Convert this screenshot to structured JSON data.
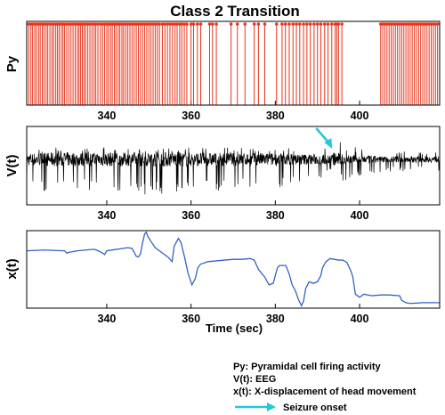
{
  "chart_data": [
    {
      "type": "raster",
      "title": "Class 2 Transition",
      "ylabel": "Py",
      "xlabel": "",
      "xlim": [
        321,
        419
      ],
      "xticks": [
        340,
        360,
        380,
        400
      ],
      "color": "#e8341c",
      "spike_times": [
        321.5,
        322.0,
        322.4,
        322.9,
        323.3,
        323.8,
        324.2,
        324.7,
        325.1,
        325.6,
        326.0,
        326.5,
        327.0,
        327.4,
        327.9,
        328.3,
        328.7,
        329.2,
        329.6,
        330.0,
        330.5,
        331.0,
        331.5,
        332.0,
        332.5,
        333.0,
        333.4,
        333.8,
        334.2,
        334.6,
        335.0,
        335.5,
        336.0,
        336.5,
        337.0,
        337.4,
        337.9,
        338.5,
        339.0,
        339.5,
        340.0,
        340.4,
        340.9,
        341.3,
        341.8,
        342.2,
        342.7,
        343.1,
        343.6,
        344.0,
        344.5,
        345.0,
        345.5,
        346.0,
        346.5,
        347.0,
        347.5,
        348.0,
        348.5,
        349.0,
        349.5,
        350.0,
        350.5,
        351.0,
        351.5,
        352.0,
        352.5,
        353.2,
        353.8,
        354.4,
        355.0,
        355.6,
        356.2,
        356.7,
        357.3,
        357.8,
        358.4,
        359.0,
        360.0,
        360.6,
        361.5,
        362.3,
        364.4,
        365.1,
        366.0,
        369.5,
        371.0,
        372.8,
        375.0,
        376.0,
        377.5,
        380.3,
        381.6,
        382.4,
        383.3,
        384.2,
        385.0,
        385.8,
        386.7,
        387.5,
        388.3,
        389.2,
        390.0,
        390.8,
        391.7,
        392.5,
        393.4,
        394.2,
        394.6,
        395.0,
        395.8,
        405.0,
        405.5,
        406.0,
        406.5,
        407.0,
        407.5,
        408.0,
        408.5,
        409.0,
        409.5,
        410.0,
        410.5,
        411.0,
        411.5,
        412.0,
        412.5,
        413.0,
        413.5,
        414.0,
        414.5,
        415.0,
        415.5,
        416.0,
        416.5,
        417.0,
        417.5,
        418.0,
        418.5
      ]
    },
    {
      "type": "line",
      "ylabel": "V(t)",
      "xlabel": "",
      "xlim": [
        321,
        419
      ],
      "xticks": [
        340,
        360,
        380,
        400
      ],
      "color": "#000000",
      "annotation": "arrow pointing to seizure onset at ~393 s",
      "x": [
        321,
        325,
        330,
        335,
        340,
        345,
        350,
        355,
        360,
        365,
        370,
        375,
        380,
        385,
        390,
        392,
        393,
        394,
        395,
        396,
        398,
        400,
        405,
        410,
        415,
        419
      ],
      "envelope_hi": [
        0.28,
        0.3,
        0.3,
        0.28,
        0.3,
        0.28,
        0.3,
        0.3,
        0.28,
        0.28,
        0.28,
        0.28,
        0.28,
        0.26,
        0.26,
        0.3,
        0.55,
        0.85,
        0.55,
        0.38,
        0.3,
        0.26,
        0.2,
        0.2,
        0.2,
        0.2
      ],
      "envelope_lo": [
        -0.7,
        -0.75,
        -0.85,
        -0.75,
        -0.8,
        -0.75,
        -0.85,
        -0.85,
        -0.8,
        -0.75,
        -0.7,
        -0.7,
        -0.7,
        -0.6,
        -0.55,
        -0.45,
        -0.3,
        -0.3,
        -0.4,
        -0.55,
        -0.5,
        -0.4,
        -0.3,
        -0.28,
        -0.28,
        -0.28
      ]
    },
    {
      "type": "line",
      "ylabel": "x(t)",
      "xlabel": "Time (sec)",
      "xlim": [
        321,
        419
      ],
      "xticks": [
        340,
        360,
        380,
        400
      ],
      "color": "#3362c7",
      "x": [
        321,
        325,
        330,
        330.5,
        331,
        333,
        337,
        338,
        339,
        339.5,
        340,
        345,
        346,
        346.5,
        347,
        347.5,
        348,
        348.4,
        349,
        349.4,
        349.7,
        350.5,
        351.5,
        352.5,
        353.5,
        354.5,
        355.5,
        356,
        357,
        357.6,
        358.5,
        359.3,
        360.2,
        361,
        361.6,
        362.3,
        363,
        364,
        366,
        370,
        372,
        374,
        375,
        376,
        377.5,
        378.5,
        379.5,
        380.5,
        381,
        382.5,
        383.3,
        384,
        384.8,
        385.5,
        386.2,
        386.7,
        387.2,
        388,
        389,
        390,
        390.8,
        391.2,
        392,
        393,
        394,
        395,
        396,
        397,
        398,
        398.4,
        399,
        400,
        401,
        403,
        405,
        407,
        409.5,
        410,
        411,
        412,
        415,
        419
      ],
      "y": [
        0.74,
        0.75,
        0.74,
        0.71,
        0.72,
        0.74,
        0.76,
        0.74,
        0.71,
        0.69,
        0.74,
        0.78,
        0.77,
        0.72,
        0.67,
        0.66,
        0.7,
        0.82,
        0.96,
        0.98,
        0.93,
        0.86,
        0.78,
        0.74,
        0.7,
        0.66,
        0.6,
        0.8,
        0.9,
        0.85,
        0.65,
        0.45,
        0.3,
        0.38,
        0.52,
        0.57,
        0.58,
        0.6,
        0.61,
        0.63,
        0.63,
        0.64,
        0.62,
        0.5,
        0.4,
        0.3,
        0.32,
        0.52,
        0.55,
        0.55,
        0.44,
        0.3,
        0.22,
        0.11,
        0.03,
        0.09,
        0.25,
        0.34,
        0.32,
        0.34,
        0.42,
        0.52,
        0.6,
        0.64,
        0.63,
        0.62,
        0.62,
        0.59,
        0.47,
        0.4,
        0.18,
        0.14,
        0.18,
        0.16,
        0.17,
        0.17,
        0.16,
        0.1,
        0.07,
        0.06,
        0.07,
        0.07
      ]
    }
  ],
  "legend": {
    "line1": "Py: Pyramidal cell firing activity",
    "line2": "V(t): EEG",
    "line3": "x(t): X-displacement of head movement",
    "line4": "Seizure onset",
    "arrow_color": "#22c8d8"
  }
}
